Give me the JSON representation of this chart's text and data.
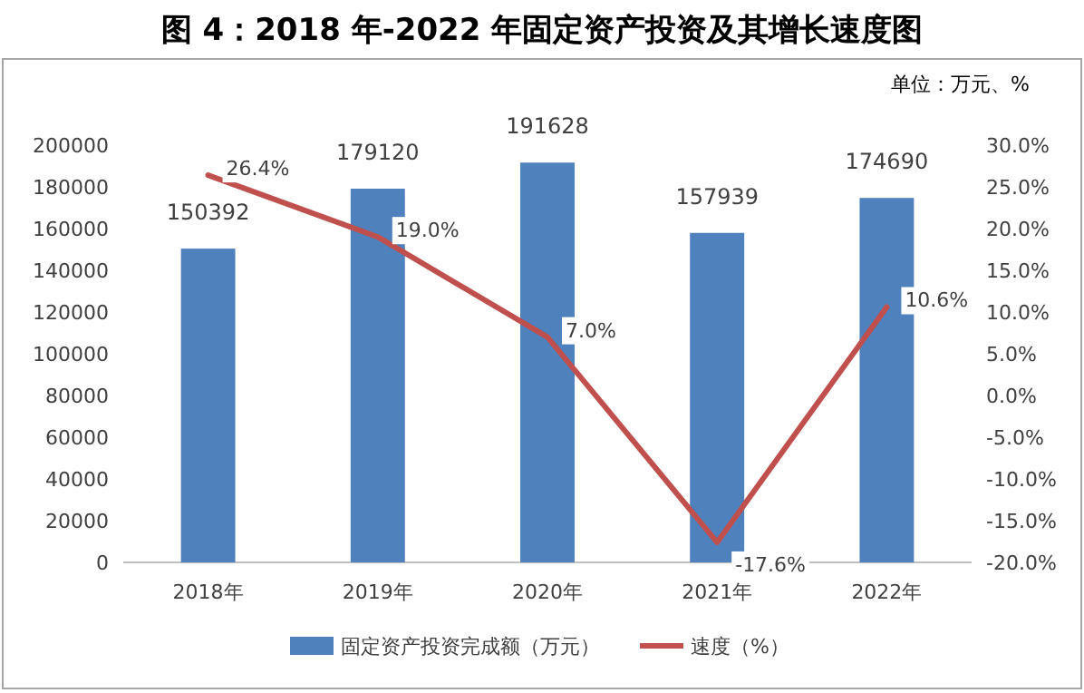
{
  "chart_data": {
    "type": "bar",
    "title": "图 4：2018 年-2022 年固定资产投资及其增长速度图",
    "subtitle": "单位：万元、%",
    "categories": [
      "2018年",
      "2019年",
      "2020年",
      "2021年",
      "2022年"
    ],
    "series": [
      {
        "name": "固定资产投资完成额（万元）",
        "color": "#4f81bd",
        "values": [
          150392,
          179120,
          191628,
          157939,
          174690
        ],
        "value_labels": [
          "150392",
          "179120",
          "191628",
          "157939",
          "174690"
        ]
      },
      {
        "name": "速度（%）",
        "type": "line",
        "axis": "y2",
        "color": "#c0504d",
        "values": [
          26.4,
          19.0,
          7.0,
          -17.6,
          10.6
        ],
        "value_labels": [
          "26.4%",
          "19.0%",
          "7.0%",
          "-17.6%",
          "10.6%"
        ]
      }
    ],
    "ylim": [
      0,
      200000
    ],
    "yticks": [
      0,
      20000,
      40000,
      60000,
      80000,
      100000,
      120000,
      140000,
      160000,
      180000,
      200000
    ],
    "y2lim": [
      -20,
      30
    ],
    "y2ticks": [
      {
        "value": -20,
        "label": "-20.0%"
      },
      {
        "value": -15,
        "label": "-15.0%"
      },
      {
        "value": -10,
        "label": "-10.0%"
      },
      {
        "value": -5,
        "label": "-5.0%"
      },
      {
        "value": 0,
        "label": "0.0%"
      },
      {
        "value": 5,
        "label": "5.0%"
      },
      {
        "value": 10,
        "label": "10.0%"
      },
      {
        "value": 15,
        "label": "15.0%"
      },
      {
        "value": 20,
        "label": "20.0%"
      },
      {
        "value": 25,
        "label": "25.0%"
      },
      {
        "value": 30,
        "label": "30.0%"
      }
    ],
    "legend": "bottom"
  }
}
